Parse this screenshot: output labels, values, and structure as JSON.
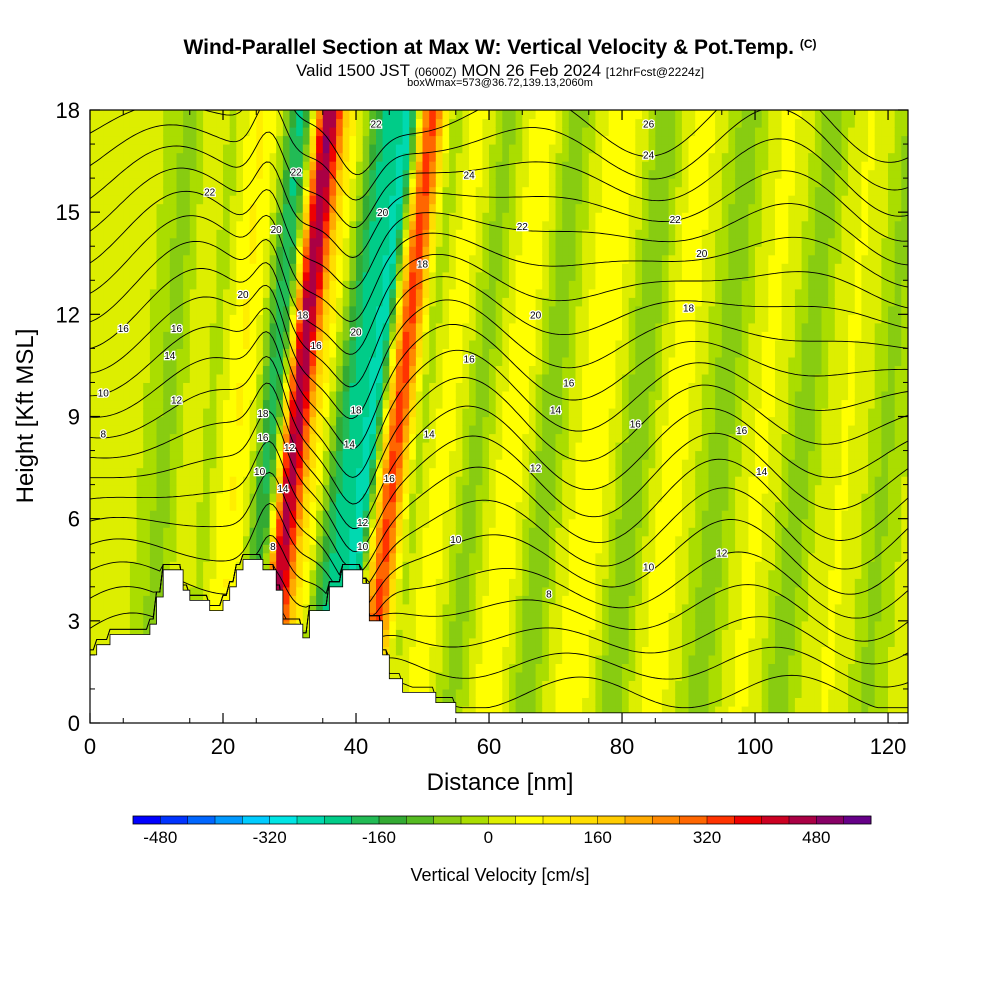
{
  "header": {
    "title": "Wind-Parallel Section at Max W: Vertical Velocity & Pot.Temp.",
    "copyright": "(C)",
    "valid_a": "Valid 1500 JST",
    "valid_b": "(0600Z)",
    "valid_c": "MON 26 Feb 2024",
    "valid_d": "[12hrFcst@2224z]",
    "subtitle": "boxWmax=573@36.72,139.13,2060m"
  },
  "chart_data": {
    "type": "heatmap",
    "xlabel": "Distance [nm]",
    "ylabel": "Height [Kft MSL]",
    "xlim": [
      0,
      123
    ],
    "ylim": [
      0,
      18
    ],
    "x_ticks": [
      "0",
      "20",
      "40",
      "60",
      "80",
      "100",
      "120"
    ],
    "y_ticks": [
      "0",
      "3",
      "6",
      "9",
      "12",
      "15",
      "18"
    ],
    "colorbar": {
      "label": "Vertical Velocity [cm/s]",
      "min": -520,
      "max": 520,
      "step": 40,
      "tick_labels": [
        "-480",
        "-320",
        "-160",
        "0",
        "160",
        "320",
        "480"
      ],
      "colors": [
        "#0000ff",
        "#0033ff",
        "#0066ff",
        "#0099ff",
        "#00ccff",
        "#00e5e5",
        "#00d9b0",
        "#00cc88",
        "#22bb55",
        "#33aa33",
        "#55bb22",
        "#88cc11",
        "#aadd00",
        "#ddee00",
        "#ffff00",
        "#ffee00",
        "#ffdd00",
        "#ffcc00",
        "#ffaa00",
        "#ff8800",
        "#ff6600",
        "#ff3300",
        "#ee0000",
        "#cc0022",
        "#aa0044",
        "#880066",
        "#660088"
      ]
    },
    "terrain_kft": [
      [
        0,
        2.0
      ],
      [
        1,
        2.0
      ],
      [
        1,
        2.3
      ],
      [
        3,
        2.3
      ],
      [
        3,
        2.6
      ],
      [
        9,
        2.6
      ],
      [
        9,
        2.9
      ],
      [
        10,
        2.9
      ],
      [
        10,
        3.7
      ],
      [
        11,
        3.7
      ],
      [
        11,
        4.5
      ],
      [
        14,
        4.5
      ],
      [
        14,
        3.9
      ],
      [
        15,
        3.9
      ],
      [
        15,
        3.6
      ],
      [
        18,
        3.6
      ],
      [
        18,
        3.3
      ],
      [
        20,
        3.3
      ],
      [
        20,
        3.6
      ],
      [
        21,
        3.6
      ],
      [
        21,
        4.0
      ],
      [
        22,
        4.0
      ],
      [
        22,
        4.5
      ],
      [
        23,
        4.5
      ],
      [
        23,
        4.8
      ],
      [
        26,
        4.8
      ],
      [
        26,
        4.5
      ],
      [
        28,
        4.5
      ],
      [
        28,
        3.9
      ],
      [
        29,
        3.9
      ],
      [
        29,
        2.9
      ],
      [
        32,
        2.9
      ],
      [
        32,
        2.5
      ],
      [
        33,
        2.5
      ],
      [
        33,
        3.3
      ],
      [
        36,
        3.3
      ],
      [
        36,
        4.0
      ],
      [
        38,
        4.0
      ],
      [
        38,
        4.5
      ],
      [
        41,
        4.5
      ],
      [
        41,
        4.1
      ],
      [
        42,
        4.1
      ],
      [
        42,
        3.0
      ],
      [
        44,
        3.0
      ],
      [
        44,
        2.0
      ],
      [
        45,
        2.0
      ],
      [
        45,
        1.3
      ],
      [
        47,
        1.3
      ],
      [
        47,
        0.9
      ],
      [
        52,
        0.9
      ],
      [
        52,
        0.6
      ],
      [
        55,
        0.6
      ],
      [
        55,
        0.3
      ],
      [
        123,
        0.3
      ]
    ],
    "theta_levels": [
      "8",
      "10",
      "12",
      "14",
      "16",
      "18",
      "20",
      "22",
      "24",
      "26"
    ],
    "contour_labels": [
      {
        "text": "8",
        "x": 2,
        "y": 8.5
      },
      {
        "text": "10",
        "x": 2,
        "y": 9.7
      },
      {
        "text": "16",
        "x": 5,
        "y": 11.6
      },
      {
        "text": "12",
        "x": 13,
        "y": 9.5
      },
      {
        "text": "14",
        "x": 12,
        "y": 10.8
      },
      {
        "text": "16",
        "x": 13,
        "y": 11.6
      },
      {
        "text": "22",
        "x": 18,
        "y": 15.6
      },
      {
        "text": "20",
        "x": 23,
        "y": 12.6
      },
      {
        "text": "20",
        "x": 28,
        "y": 14.5
      },
      {
        "text": "22",
        "x": 31,
        "y": 16.2
      },
      {
        "text": "18",
        "x": 32,
        "y": 12.0
      },
      {
        "text": "16",
        "x": 34,
        "y": 11.1
      },
      {
        "text": "18",
        "x": 26,
        "y": 9.1
      },
      {
        "text": "16",
        "x": 26,
        "y": 8.4
      },
      {
        "text": "10",
        "x": 25.5,
        "y": 7.4
      },
      {
        "text": "12",
        "x": 30,
        "y": 8.1
      },
      {
        "text": "14",
        "x": 29,
        "y": 6.9
      },
      {
        "text": "8",
        "x": 27.5,
        "y": 5.2
      },
      {
        "text": "22",
        "x": 43,
        "y": 17.6
      },
      {
        "text": "20",
        "x": 44,
        "y": 15.0
      },
      {
        "text": "20",
        "x": 40,
        "y": 11.5
      },
      {
        "text": "18",
        "x": 40,
        "y": 9.2
      },
      {
        "text": "14",
        "x": 39,
        "y": 8.2
      },
      {
        "text": "12",
        "x": 41,
        "y": 5.9
      },
      {
        "text": "10",
        "x": 41,
        "y": 5.2
      },
      {
        "text": "16",
        "x": 45,
        "y": 7.2
      },
      {
        "text": "18",
        "x": 50,
        "y": 13.5
      },
      {
        "text": "16",
        "x": 57,
        "y": 10.7
      },
      {
        "text": "14",
        "x": 51,
        "y": 8.5
      },
      {
        "text": "10",
        "x": 55,
        "y": 5.4
      },
      {
        "text": "24",
        "x": 57,
        "y": 16.1
      },
      {
        "text": "22",
        "x": 65,
        "y": 14.6
      },
      {
        "text": "20",
        "x": 67,
        "y": 12.0
      },
      {
        "text": "16",
        "x": 72,
        "y": 10.0
      },
      {
        "text": "14",
        "x": 70,
        "y": 9.2
      },
      {
        "text": "12",
        "x": 67,
        "y": 7.5
      },
      {
        "text": "8",
        "x": 69,
        "y": 3.8
      },
      {
        "text": "26",
        "x": 84,
        "y": 17.6
      },
      {
        "text": "24",
        "x": 84,
        "y": 16.7
      },
      {
        "text": "22",
        "x": 88,
        "y": 14.8
      },
      {
        "text": "20",
        "x": 92,
        "y": 13.8
      },
      {
        "text": "18",
        "x": 90,
        "y": 12.2
      },
      {
        "text": "16",
        "x": 82,
        "y": 8.8
      },
      {
        "text": "10",
        "x": 84,
        "y": 4.6
      },
      {
        "text": "16",
        "x": 98,
        "y": 8.6
      },
      {
        "text": "14",
        "x": 101,
        "y": 7.4
      },
      {
        "text": "12",
        "x": 95,
        "y": 5.0
      }
    ]
  }
}
